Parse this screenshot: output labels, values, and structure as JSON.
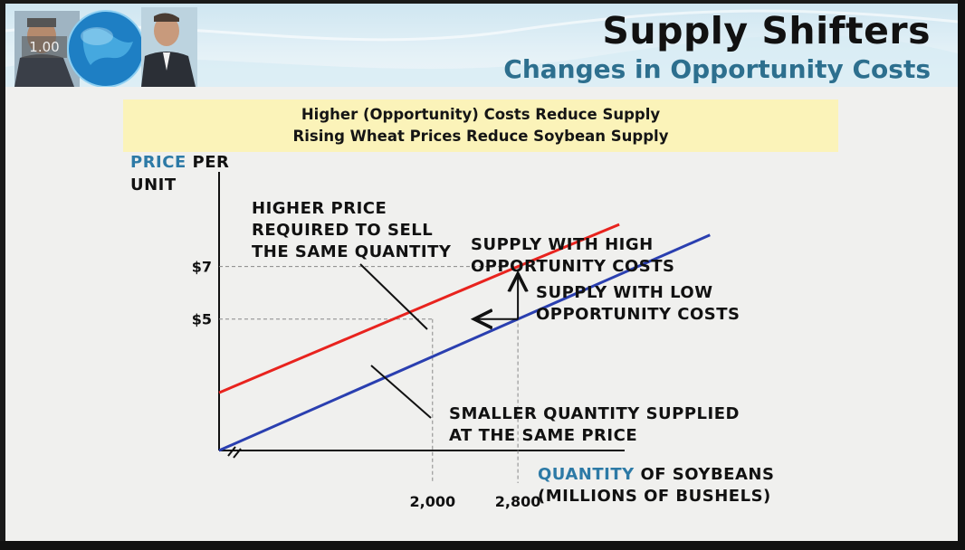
{
  "header": {
    "title": "Supply Shifters",
    "subtitle": "Changes in Opportunity Costs",
    "speed_badge": "1.00"
  },
  "caption": {
    "line1": "Higher (Opportunity) Costs Reduce Supply",
    "line2": "Rising Wheat Prices Reduce Soybean Supply"
  },
  "chart_data": {
    "type": "line",
    "title": "",
    "ylabel": {
      "highlight": "PRICE",
      "rest": "PER",
      "line2": "UNIT"
    },
    "xlabel": {
      "highlight": "QUANTITY",
      "rest": "OF SOYBEANS",
      "line2": "(MILLIONS OF BUSHELS)"
    },
    "xlim": [
      0,
      3800
    ],
    "ylim": [
      0,
      10.6
    ],
    "y_ticks": [
      {
        "value": 7,
        "label": "$7"
      },
      {
        "value": 5,
        "label": "$5"
      }
    ],
    "x_ticks": [
      {
        "value": 2000,
        "label": "2,000"
      },
      {
        "value": 2800,
        "label": "2,800"
      }
    ],
    "series": [
      {
        "name": "SUPPLY WITH HIGH OPPORTUNITY COSTS",
        "color": "#e8231e",
        "points": [
          [
            0,
            2.2
          ],
          [
            2800,
            7
          ],
          [
            3750,
            8.6
          ]
        ]
      },
      {
        "name": "SUPPLY WITH LOW OPPORTUNITY COSTS",
        "color": "#2a3fb0",
        "points": [
          [
            0,
            0
          ],
          [
            2800,
            5
          ],
          [
            4600,
            8.2
          ]
        ]
      }
    ],
    "annotations": {
      "higher_price": [
        "HIGHER PRICE",
        "REQUIRED TO SELL",
        "THE SAME QUANTITY"
      ],
      "high_supply": [
        "SUPPLY WITH HIGH",
        "OPPORTUNITY COSTS"
      ],
      "low_supply": [
        "SUPPLY WITH LOW",
        "OPPORTUNITY COSTS"
      ],
      "smaller_qty": [
        "SMALLER QUANTITY SUPPLIED",
        "AT THE SAME PRICE"
      ]
    }
  }
}
